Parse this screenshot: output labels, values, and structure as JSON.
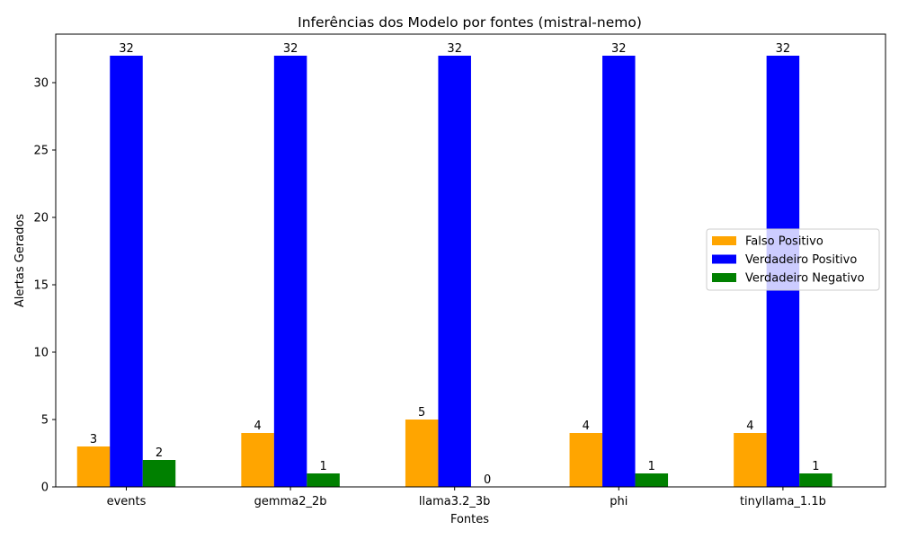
{
  "chart_data": {
    "type": "bar",
    "title": "Inferências dos Modelo por fontes (mistral-nemo)",
    "xlabel": "Fontes",
    "ylabel": "Alertas Gerados",
    "categories": [
      "events",
      "gemma2_2b",
      "llama3.2_3b",
      "phi",
      "tinyllama_1.1b"
    ],
    "ylim": [
      0,
      33.6
    ],
    "yticks": [
      0,
      5,
      10,
      15,
      20,
      25,
      30
    ],
    "grid": false,
    "legend_position": "center-right",
    "series": [
      {
        "name": "Falso Positivo",
        "color": "#ffa500",
        "values": [
          3,
          4,
          5,
          4,
          4
        ]
      },
      {
        "name": "Verdadeiro Positivo",
        "color": "#0000ff",
        "values": [
          32,
          32,
          32,
          32,
          32
        ]
      },
      {
        "name": "Verdadeiro Negativo",
        "color": "#008000",
        "values": [
          2,
          1,
          0,
          1,
          1
        ]
      }
    ]
  }
}
